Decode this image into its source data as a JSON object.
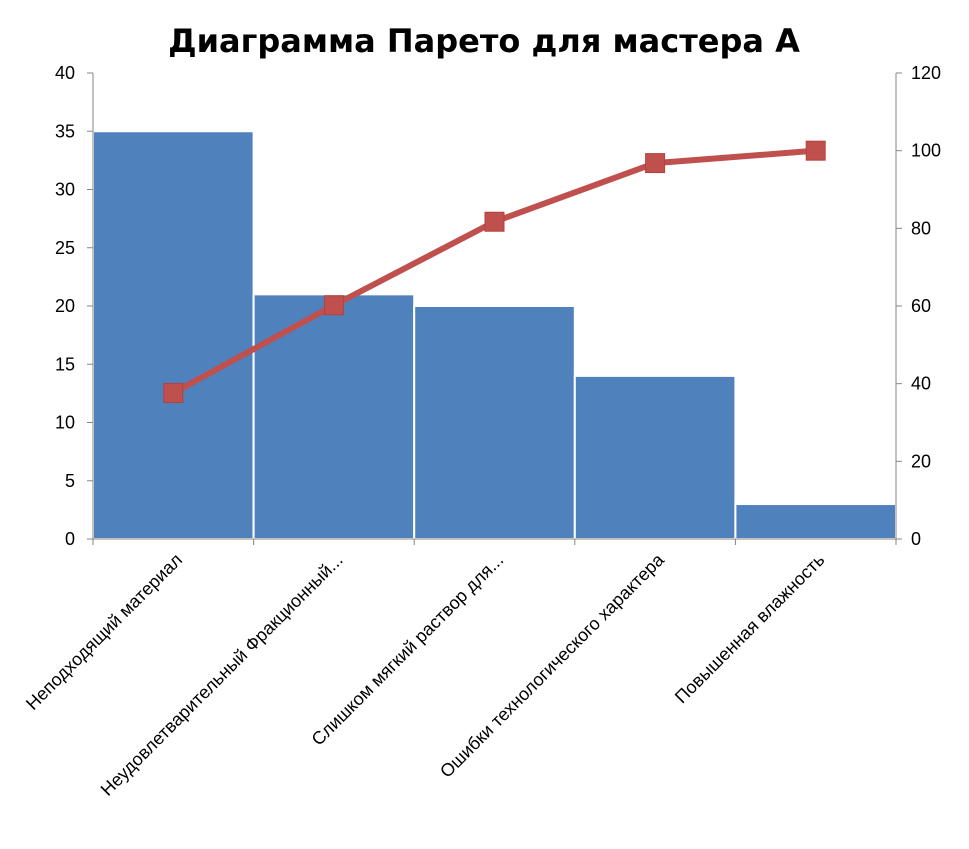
{
  "chart_data": {
    "type": "bar",
    "title": "Диаграмма Парето для мастера А",
    "categories": [
      "Неподходящий материал",
      "Неудовлетварительный Фракционный...",
      "Слишком мягкий раствор для...",
      "Ошибки технологического характера",
      "Повышенная влажность"
    ],
    "series": [
      {
        "type": "bar",
        "axis": "left",
        "values": [
          35,
          21,
          20,
          14,
          3
        ],
        "color": "#4F81BD"
      },
      {
        "type": "line",
        "axis": "right",
        "values": [
          37.6,
          60.2,
          81.7,
          96.8,
          100
        ],
        "color": "#C0504D"
      }
    ],
    "ylim_left": [
      0,
      40
    ],
    "yticks_left": [
      "0",
      "5",
      "10",
      "15",
      "20",
      "25",
      "30",
      "35",
      "40"
    ],
    "ylim_right": [
      0,
      120
    ],
    "yticks_right": [
      "0",
      "20",
      "40",
      "60",
      "80",
      "100",
      "120"
    ],
    "grid": false,
    "legend": "none"
  }
}
